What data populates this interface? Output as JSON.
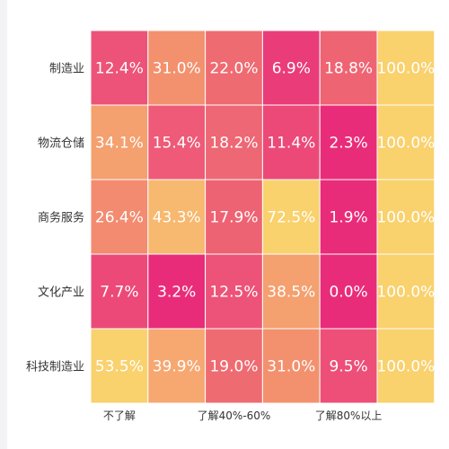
{
  "chart_data": {
    "type": "heatmap",
    "rows": [
      "制造业",
      "物流仓储",
      "商务服务",
      "文化产业",
      "科技制造业"
    ],
    "x_tick_labels": [
      "不了解",
      "",
      "了解40%-60%",
      "",
      "了解80%以上",
      ""
    ],
    "values": [
      [
        12.4,
        31.0,
        22.0,
        6.9,
        18.8,
        100.0
      ],
      [
        34.1,
        15.4,
        18.2,
        11.4,
        2.3,
        100.0
      ],
      [
        26.4,
        43.3,
        17.9,
        72.5,
        1.9,
        100.0
      ],
      [
        7.7,
        3.2,
        12.5,
        38.5,
        0.0,
        100.0
      ],
      [
        53.5,
        39.9,
        19.0,
        31.0,
        9.5,
        100.0
      ]
    ],
    "labels": [
      [
        "12.4%",
        "31.0%",
        "22.0%",
        "6.9%",
        "18.8%",
        "100.0%"
      ],
      [
        "34.1%",
        "15.4%",
        "18.2%",
        "11.4%",
        "2.3%",
        "100.0%"
      ],
      [
        "26.4%",
        "43.3%",
        "17.9%",
        "72.5%",
        "1.9%",
        "100.0%"
      ],
      [
        "7.7%",
        "3.2%",
        "12.5%",
        "38.5%",
        "0.0%",
        "100.0%"
      ],
      [
        "53.5%",
        "39.9%",
        "19.0%",
        "31.0%",
        "9.5%",
        "100.0%"
      ]
    ],
    "cell_colors": [
      [
        "#ed5378",
        "#f3916e",
        "#ef6b72",
        "#ea3c79",
        "#ef6473",
        "#f9d16d"
      ],
      [
        "#f4a06f",
        "#ee5a77",
        "#ee6774",
        "#ec4979",
        "#e92c79",
        "#f9d16d"
      ],
      [
        "#f38b70",
        "#f7b86f",
        "#ee6374",
        "#f9d16d",
        "#e92c79",
        "#f9d16d"
      ],
      [
        "#ec4979",
        "#e92c79",
        "#ed5378",
        "#f4a06f",
        "#e92c79",
        "#f9d16d"
      ],
      [
        "#f9d16d",
        "#f6a870",
        "#ef6b72",
        "#f3916e",
        "#ed4f78",
        "#f9d16d"
      ]
    ],
    "cell_border_color": "#ffffff",
    "text_color": "#ffffff",
    "legend": "none",
    "grid": false
  }
}
